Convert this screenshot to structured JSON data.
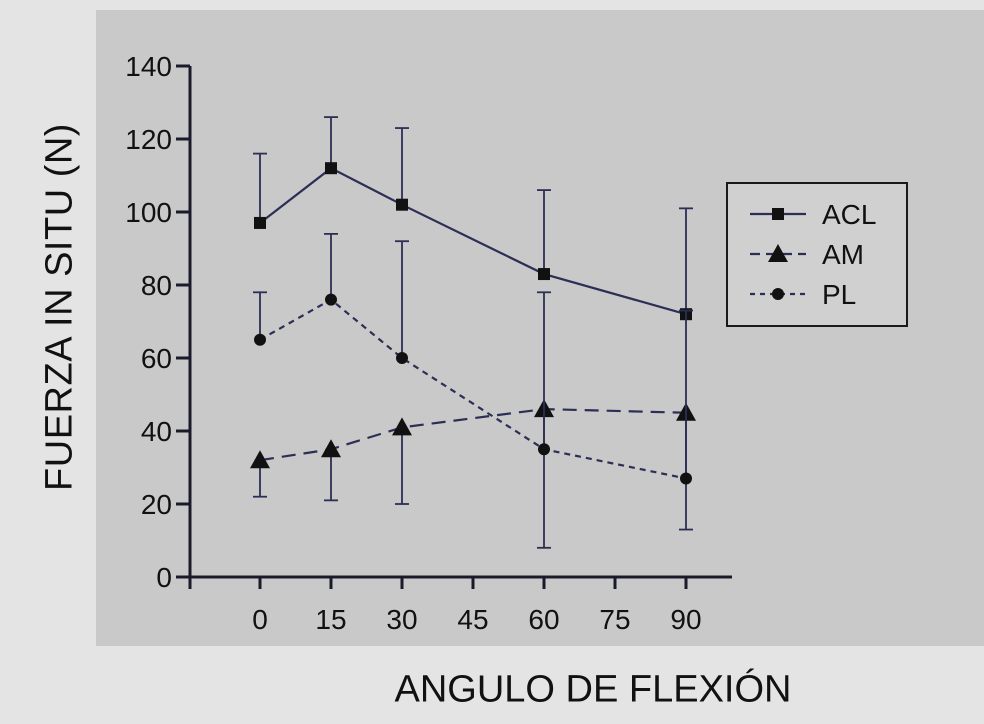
{
  "chart_data": {
    "type": "line",
    "title": "",
    "xlabel": "ANGULO DE FLEXIÓN",
    "ylabel": "FUERZA IN SITU  (N)",
    "xlim": [
      0,
      90
    ],
    "ylim": [
      0,
      140
    ],
    "x_ticks": [
      0,
      15,
      30,
      45,
      60,
      75,
      90
    ],
    "y_ticks": [
      0,
      20,
      40,
      60,
      80,
      100,
      120,
      140
    ],
    "x_tick_labels": [
      "0",
      "15",
      "30",
      "45",
      "60",
      "75",
      "90"
    ],
    "y_tick_labels": [
      "0",
      "20",
      "40",
      "60",
      "80",
      "100",
      "120",
      "140"
    ],
    "grid": false,
    "legend_position": "right",
    "series": [
      {
        "name": "ACL",
        "marker": "square",
        "line_style": "solid",
        "x": [
          0,
          15,
          30,
          60,
          90
        ],
        "values": [
          97,
          112,
          102,
          83,
          72
        ],
        "error_upper": [
          116,
          126,
          123,
          106,
          101
        ]
      },
      {
        "name": "AM",
        "marker": "triangle",
        "line_style": "dashed",
        "x": [
          0,
          15,
          30,
          60,
          90
        ],
        "values": [
          32,
          35,
          41,
          46,
          45
        ],
        "error_lower": [
          22,
          21,
          20,
          8,
          13
        ]
      },
      {
        "name": "PL",
        "marker": "circle",
        "line_style": "dotted",
        "x": [
          0,
          15,
          30,
          60,
          90
        ],
        "values": [
          65,
          76,
          60,
          35,
          27
        ],
        "error_upper": [
          78,
          94,
          92,
          78,
          73
        ]
      }
    ]
  }
}
